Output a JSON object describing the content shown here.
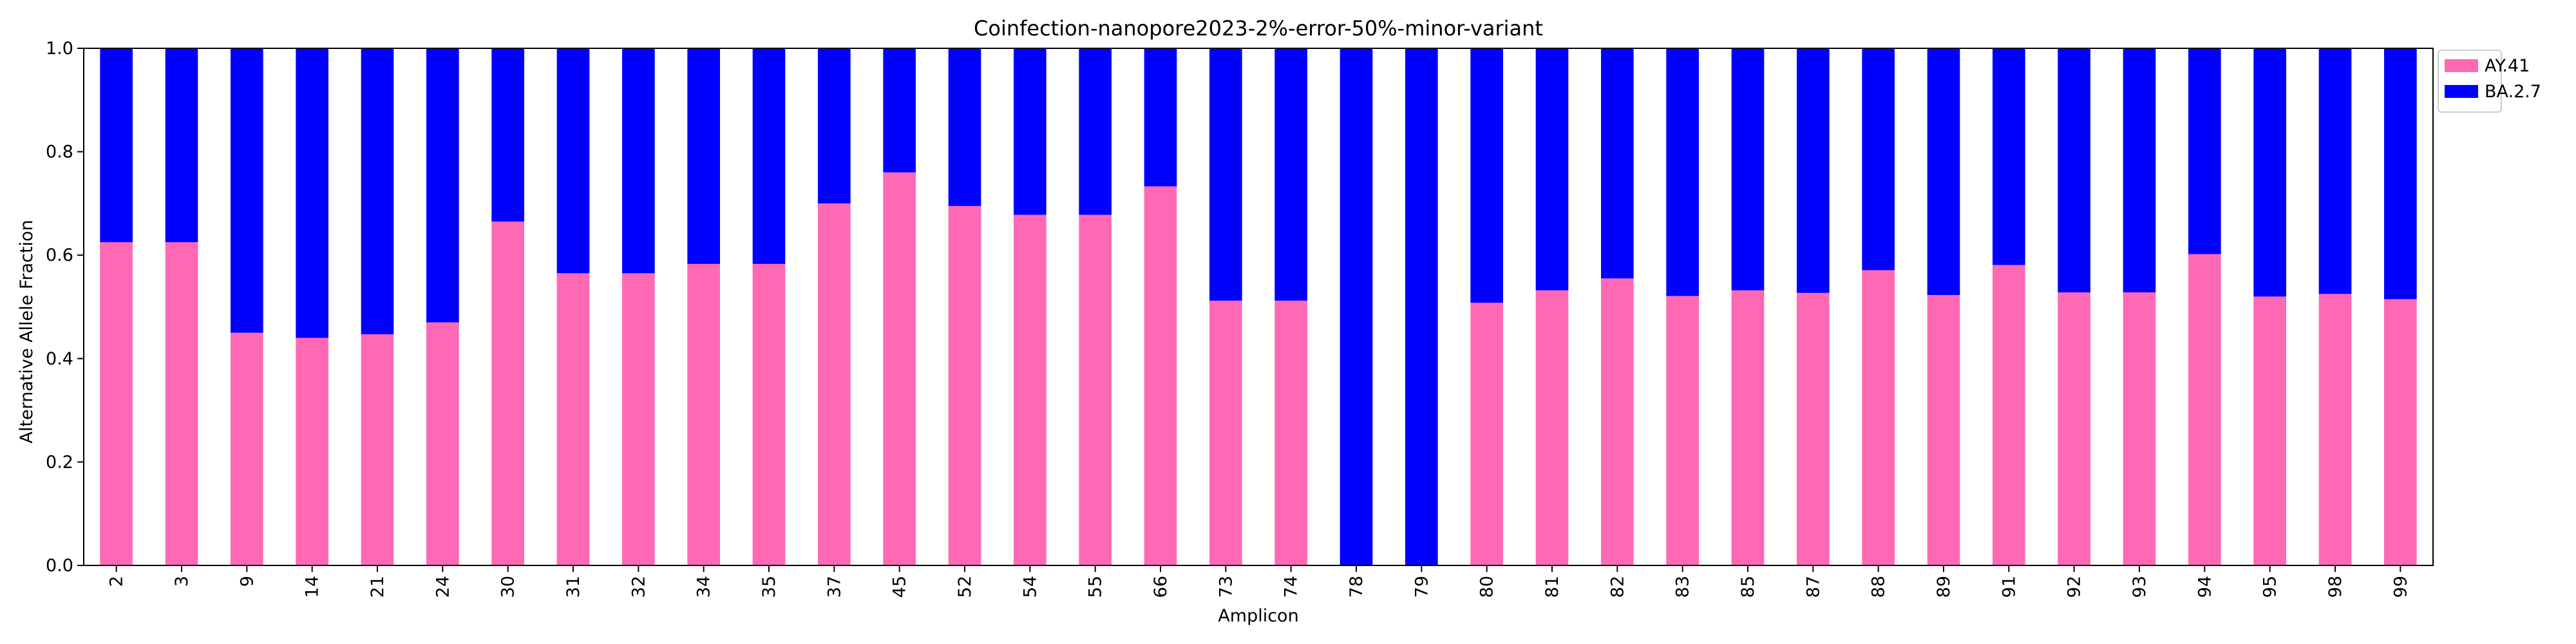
{
  "chart_data": {
    "type": "bar",
    "stacked": true,
    "title": "Coinfection-nanopore2023-2%-error-50%-minor-variant",
    "xlabel": "Amplicon",
    "ylabel": "Alternative Allele Fraction",
    "ylim": [
      0,
      1.0
    ],
    "yticks": [
      "0.0",
      "0.2",
      "0.4",
      "0.6",
      "0.8",
      "1.0"
    ],
    "legend_position": "outside-top-right",
    "categories": [
      "2",
      "3",
      "9",
      "14",
      "21",
      "24",
      "30",
      "31",
      "32",
      "34",
      "35",
      "37",
      "45",
      "52",
      "54",
      "55",
      "66",
      "73",
      "74",
      "78",
      "79",
      "80",
      "81",
      "82",
      "83",
      "85",
      "87",
      "88",
      "89",
      "91",
      "92",
      "93",
      "94",
      "95",
      "98",
      "99"
    ],
    "series": [
      {
        "name": "AY.41",
        "color": "#FF69B4",
        "values": [
          0.625,
          0.625,
          0.45,
          0.44,
          0.447,
          0.47,
          0.665,
          0.565,
          0.565,
          0.583,
          0.583,
          0.7,
          0.76,
          0.695,
          0.678,
          0.678,
          0.733,
          0.512,
          0.512,
          0.0,
          0.0,
          0.508,
          0.532,
          0.555,
          0.521,
          0.532,
          0.527,
          0.571,
          0.523,
          0.581,
          0.528,
          0.528,
          0.602,
          0.52,
          0.525,
          0.515
        ]
      },
      {
        "name": "BA.2.7",
        "color": "#0000FF",
        "values": [
          0.375,
          0.375,
          0.55,
          0.56,
          0.553,
          0.53,
          0.335,
          0.435,
          0.435,
          0.417,
          0.417,
          0.3,
          0.24,
          0.305,
          0.322,
          0.322,
          0.267,
          0.488,
          0.488,
          1.0,
          1.0,
          0.492,
          0.468,
          0.445,
          0.479,
          0.468,
          0.473,
          0.429,
          0.477,
          0.419,
          0.472,
          0.472,
          0.398,
          0.48,
          0.475,
          0.485
        ]
      }
    ]
  }
}
